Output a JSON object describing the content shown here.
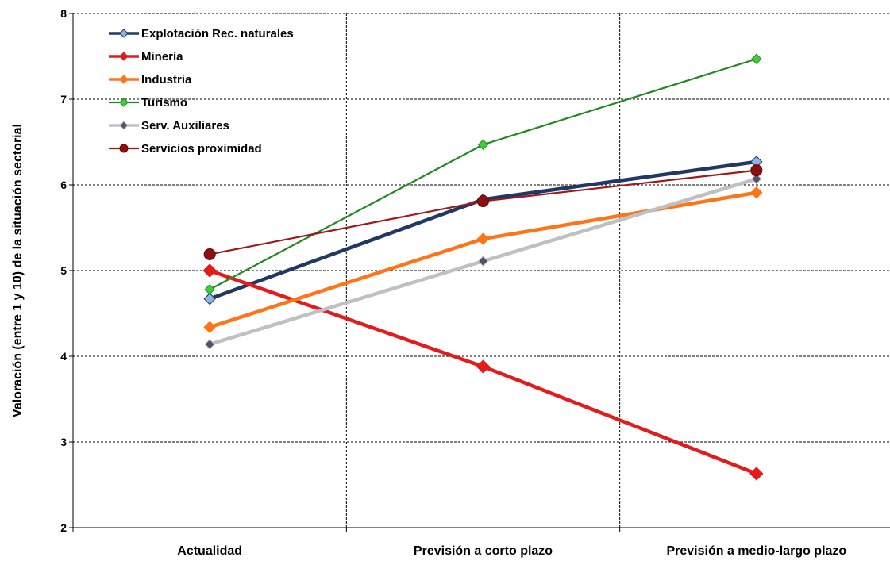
{
  "chart_data": {
    "type": "line",
    "title": "",
    "xlabel": "",
    "ylabel": "Valoración (entre 1 y 10) de la situación sectorial",
    "ylim": [
      2,
      8
    ],
    "yticks": [
      "2",
      "3",
      "4",
      "5",
      "6",
      "7",
      "8"
    ],
    "categories": [
      "Actualidad",
      "Previsión a corto plazo",
      "Previsión a medio-largo plazo"
    ],
    "grid": true,
    "legend_position": "top-left",
    "series": [
      {
        "name": "Explotación Rec. naturales",
        "values": [
          4.67,
          5.83,
          6.27
        ],
        "color": "#1f3864",
        "marker": "diamond",
        "marker_color": "#8db4e2"
      },
      {
        "name": "Minería",
        "values": [
          5.0,
          3.88,
          2.63
        ],
        "color": "#e31b1b",
        "marker": "diamond",
        "marker_color": "#e31b1b"
      },
      {
        "name": "Industria",
        "values": [
          4.34,
          5.37,
          5.91
        ],
        "color": "#ff7418",
        "marker": "diamond",
        "marker_color": "#ff7418"
      },
      {
        "name": "Turismo",
        "values": [
          4.78,
          6.47,
          7.47
        ],
        "color": "#218a21",
        "marker": "diamond",
        "marker_color": "#3ccf3c"
      },
      {
        "name": "Serv. Auxiliares",
        "values": [
          4.14,
          5.11,
          6.07
        ],
        "color": "#c0c0c0",
        "marker": "diamond",
        "marker_color": "#55506a"
      },
      {
        "name": "Servicios proximidad",
        "values": [
          5.19,
          5.81,
          6.17
        ],
        "color": "#a01818",
        "marker": "circle",
        "marker_color": "#8b1010"
      }
    ]
  }
}
